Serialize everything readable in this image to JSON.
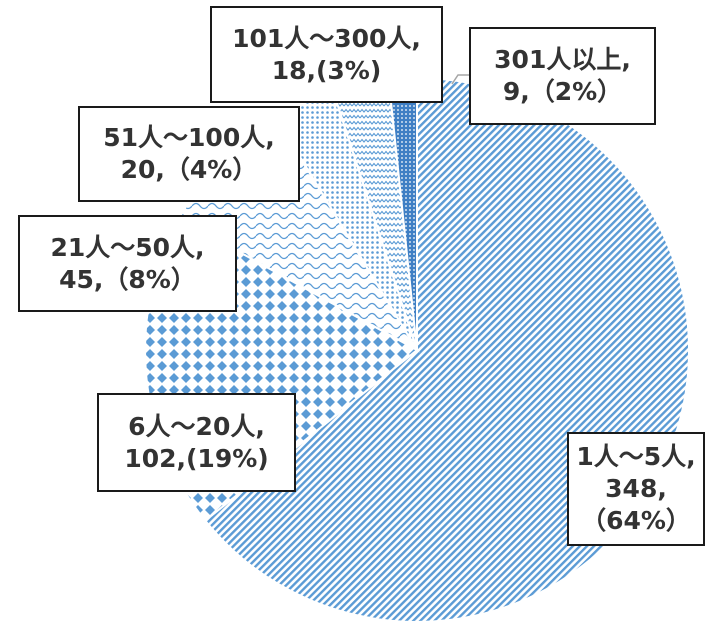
{
  "chart_data": {
    "type": "pie",
    "slices": [
      {
        "category": "1人～5人",
        "value": 348,
        "percent_label": "（64%）",
        "pattern": "diagonal-stripes",
        "label_lines": [
          "1人～5人,",
          "348,",
          "（64%）"
        ]
      },
      {
        "category": "6人～20人",
        "value": 102,
        "percent_label": "(19%)",
        "pattern": "diamond-dots",
        "label_lines": [
          "6人～20人,",
          "102,(19%)"
        ]
      },
      {
        "category": "21人～50人",
        "value": 45,
        "percent_label": "(8%)",
        "pattern": "wave",
        "label_lines": [
          "21人～50人,",
          "45,（8%）"
        ]
      },
      {
        "category": "51人～100人",
        "value": 20,
        "percent_label": "(4%)",
        "pattern": "small-dots",
        "label_lines": [
          "51人～100人,",
          "20,（4%）"
        ]
      },
      {
        "category": "101人～300人",
        "value": 18,
        "percent_label": "(3%)",
        "pattern": "zigzag",
        "label_lines": [
          "101人～300人,",
          "18,(3%)"
        ]
      },
      {
        "category": "301人以上",
        "value": 9,
        "percent_label": "(2%)",
        "pattern": "solid-dots",
        "label_lines": [
          "301人以上,",
          "9,（2%）"
        ]
      }
    ],
    "colors": {
      "accent": "#5b9bd5",
      "border": "#1a1a1a",
      "text": "#333333"
    },
    "legend": "none",
    "data_labels": "callout-boxes"
  }
}
